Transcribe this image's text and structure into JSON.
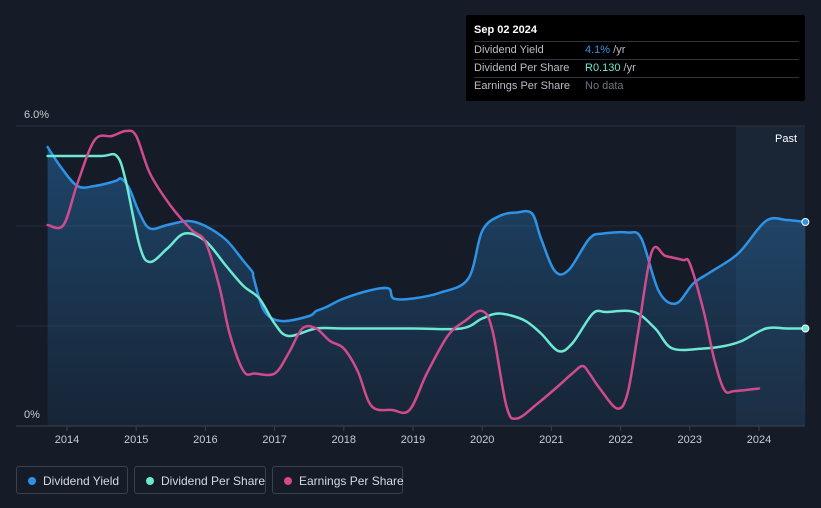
{
  "tooltip": {
    "date": "Sep 02 2024",
    "rows": [
      {
        "label": "Dividend Yield",
        "value": "4.1%",
        "unit": " /yr"
      },
      {
        "label": "Dividend Per Share",
        "value": "R0.130",
        "unit": " /yr"
      },
      {
        "label": "Earnings Per Share",
        "value": "No data",
        "unit": ""
      }
    ]
  },
  "colors": {
    "background": "#151b27",
    "dividend_yield": "#2e93e6",
    "dividend_per_share": "#6ee7d3",
    "earnings_per_share": "#d04b8c",
    "past_band": "#1a2535"
  },
  "chart_data": {
    "type": "line",
    "title": "",
    "past_label": "Past",
    "y_axis": {
      "min_label": "0%",
      "max_label": "6.0%",
      "ylim": [
        0,
        6.0
      ]
    },
    "x_axis": {
      "ticks": [
        "2014",
        "2015",
        "2016",
        "2017",
        "2018",
        "2019",
        "2020",
        "2021",
        "2022",
        "2023",
        "2024"
      ]
    },
    "series": [
      {
        "name": "Dividend Yield",
        "key": "dividend_yield",
        "unit": "%",
        "area": true,
        "end_marker": true,
        "points": [
          [
            2013.72,
            5.58
          ],
          [
            2013.9,
            5.2
          ],
          [
            2014.15,
            4.8
          ],
          [
            2014.4,
            4.8
          ],
          [
            2014.7,
            4.9
          ],
          [
            2014.78,
            4.95
          ],
          [
            2014.9,
            4.75
          ],
          [
            2015.05,
            4.25
          ],
          [
            2015.2,
            3.95
          ],
          [
            2015.45,
            4.02
          ],
          [
            2015.75,
            4.1
          ],
          [
            2016.0,
            4.0
          ],
          [
            2016.3,
            3.72
          ],
          [
            2016.55,
            3.3
          ],
          [
            2016.68,
            3.08
          ],
          [
            2016.7,
            2.95
          ],
          [
            2016.85,
            2.3
          ],
          [
            2017.1,
            2.1
          ],
          [
            2017.5,
            2.2
          ],
          [
            2017.6,
            2.3
          ],
          [
            2017.75,
            2.38
          ],
          [
            2018.0,
            2.55
          ],
          [
            2018.4,
            2.72
          ],
          [
            2018.65,
            2.75
          ],
          [
            2018.72,
            2.55
          ],
          [
            2019.0,
            2.55
          ],
          [
            2019.4,
            2.67
          ],
          [
            2019.8,
            2.95
          ],
          [
            2020.0,
            3.9
          ],
          [
            2020.25,
            4.2
          ],
          [
            2020.5,
            4.27
          ],
          [
            2020.72,
            4.25
          ],
          [
            2020.85,
            3.75
          ],
          [
            2021.05,
            3.1
          ],
          [
            2021.25,
            3.12
          ],
          [
            2021.55,
            3.75
          ],
          [
            2021.75,
            3.85
          ],
          [
            2022.1,
            3.87
          ],
          [
            2022.3,
            3.75
          ],
          [
            2022.55,
            2.7
          ],
          [
            2022.8,
            2.45
          ],
          [
            2023.05,
            2.85
          ],
          [
            2023.3,
            3.08
          ],
          [
            2023.7,
            3.45
          ],
          [
            2024.1,
            4.1
          ],
          [
            2024.4,
            4.12
          ],
          [
            2024.67,
            4.08
          ]
        ]
      },
      {
        "name": "Dividend Per Share",
        "key": "dividend_per_share",
        "unit": "",
        "area": false,
        "end_marker": true,
        "points": [
          [
            2013.72,
            5.4
          ],
          [
            2014.0,
            5.4
          ],
          [
            2014.5,
            5.4
          ],
          [
            2014.72,
            5.4
          ],
          [
            2014.85,
            4.9
          ],
          [
            2015.05,
            3.6
          ],
          [
            2015.2,
            3.28
          ],
          [
            2015.45,
            3.55
          ],
          [
            2015.7,
            3.85
          ],
          [
            2016.0,
            3.7
          ],
          [
            2016.3,
            3.2
          ],
          [
            2016.55,
            2.8
          ],
          [
            2016.78,
            2.55
          ],
          [
            2017.0,
            2.05
          ],
          [
            2017.2,
            1.8
          ],
          [
            2017.6,
            1.95
          ],
          [
            2018.0,
            1.95
          ],
          [
            2019.0,
            1.95
          ],
          [
            2019.7,
            1.95
          ],
          [
            2020.0,
            2.15
          ],
          [
            2020.25,
            2.25
          ],
          [
            2020.6,
            2.12
          ],
          [
            2020.85,
            1.85
          ],
          [
            2021.1,
            1.5
          ],
          [
            2021.3,
            1.65
          ],
          [
            2021.6,
            2.25
          ],
          [
            2021.8,
            2.28
          ],
          [
            2022.2,
            2.28
          ],
          [
            2022.5,
            1.95
          ],
          [
            2022.75,
            1.55
          ],
          [
            2023.2,
            1.55
          ],
          [
            2023.5,
            1.6
          ],
          [
            2023.75,
            1.7
          ],
          [
            2024.1,
            1.95
          ],
          [
            2024.4,
            1.95
          ],
          [
            2024.67,
            1.95
          ]
        ]
      },
      {
        "name": "Earnings Per Share",
        "key": "earnings_per_share",
        "unit": "",
        "area": false,
        "end_marker": false,
        "points": [
          [
            2013.72,
            4.02
          ],
          [
            2013.95,
            4.02
          ],
          [
            2014.15,
            4.85
          ],
          [
            2014.4,
            5.72
          ],
          [
            2014.65,
            5.8
          ],
          [
            2014.85,
            5.9
          ],
          [
            2015.0,
            5.8
          ],
          [
            2015.2,
            5.05
          ],
          [
            2015.5,
            4.4
          ],
          [
            2015.8,
            3.92
          ],
          [
            2016.0,
            3.68
          ],
          [
            2016.2,
            2.8
          ],
          [
            2016.35,
            1.85
          ],
          [
            2016.55,
            1.1
          ],
          [
            2016.72,
            1.05
          ],
          [
            2017.0,
            1.05
          ],
          [
            2017.2,
            1.45
          ],
          [
            2017.4,
            1.95
          ],
          [
            2017.6,
            1.95
          ],
          [
            2017.8,
            1.7
          ],
          [
            2018.0,
            1.55
          ],
          [
            2018.2,
            1.1
          ],
          [
            2018.4,
            0.4
          ],
          [
            2018.7,
            0.32
          ],
          [
            2018.95,
            0.32
          ],
          [
            2019.2,
            1.05
          ],
          [
            2019.5,
            1.8
          ],
          [
            2019.75,
            2.1
          ],
          [
            2020.0,
            2.3
          ],
          [
            2020.15,
            1.9
          ],
          [
            2020.35,
            0.4
          ],
          [
            2020.5,
            0.15
          ],
          [
            2020.8,
            0.45
          ],
          [
            2021.1,
            0.8
          ],
          [
            2021.3,
            1.05
          ],
          [
            2021.45,
            1.2
          ],
          [
            2021.55,
            1.05
          ],
          [
            2021.7,
            0.75
          ],
          [
            2021.95,
            0.35
          ],
          [
            2022.1,
            0.65
          ],
          [
            2022.25,
            1.85
          ],
          [
            2022.45,
            3.48
          ],
          [
            2022.65,
            3.4
          ],
          [
            2022.9,
            3.32
          ],
          [
            2023.0,
            3.25
          ],
          [
            2023.2,
            2.3
          ],
          [
            2023.35,
            1.35
          ],
          [
            2023.5,
            0.72
          ],
          [
            2023.65,
            0.7
          ],
          [
            2024.0,
            0.75
          ]
        ]
      }
    ]
  },
  "legend": [
    {
      "label": "Dividend Yield",
      "key": "dividend_yield"
    },
    {
      "label": "Dividend Per Share",
      "key": "dividend_per_share"
    },
    {
      "label": "Earnings Per Share",
      "key": "earnings_per_share"
    }
  ]
}
